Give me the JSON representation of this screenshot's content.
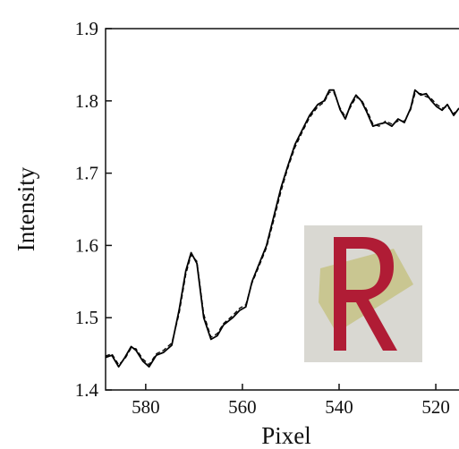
{
  "chart_data": {
    "type": "line",
    "x_label": "Pixel",
    "y_label": "Intensity",
    "x": [
      588.3,
      587.0,
      585.6,
      584.3,
      583.0,
      582.0,
      580.6,
      579.3,
      577.8,
      576.3,
      574.6,
      573.1,
      571.7,
      570.6,
      569.4,
      568.0,
      566.5,
      565.2,
      563.9,
      562.0,
      560.6,
      559.3,
      558.0,
      556.5,
      555.0,
      553.5,
      552.0,
      550.6,
      549.1,
      547.6,
      546.1,
      544.4,
      543.1,
      542.0,
      541.1,
      539.8,
      538.7,
      537.6,
      536.5,
      535.4,
      534.3,
      533.0,
      531.7,
      530.4,
      529.1,
      527.8,
      526.5,
      525.2,
      524.3,
      523.1,
      522.0,
      520.9,
      519.8,
      518.7,
      517.6,
      516.3,
      515.2
    ],
    "series": [
      {
        "color": "#000000",
        "dash": false,
        "values": [
          1.445,
          1.448,
          1.432,
          1.445,
          1.46,
          1.455,
          1.44,
          1.432,
          1.448,
          1.452,
          1.462,
          1.51,
          1.565,
          1.59,
          1.575,
          1.5,
          1.47,
          1.475,
          1.49,
          1.5,
          1.51,
          1.515,
          1.55,
          1.575,
          1.6,
          1.64,
          1.68,
          1.71,
          1.74,
          1.76,
          1.78,
          1.795,
          1.8,
          1.815,
          1.815,
          1.788,
          1.775,
          1.795,
          1.808,
          1.8,
          1.785,
          1.765,
          1.768,
          1.77,
          1.765,
          1.775,
          1.77,
          1.79,
          1.815,
          1.808,
          1.81,
          1.8,
          1.792,
          1.787,
          1.795,
          1.78,
          1.79
        ]
      },
      {
        "color": "#000000",
        "dash": true,
        "values": [
          1.447,
          1.45,
          1.435,
          1.443,
          1.458,
          1.457,
          1.443,
          1.435,
          1.45,
          1.455,
          1.465,
          1.505,
          1.56,
          1.587,
          1.578,
          1.505,
          1.473,
          1.478,
          1.492,
          1.503,
          1.513,
          1.518,
          1.548,
          1.572,
          1.597,
          1.635,
          1.675,
          1.707,
          1.736,
          1.757,
          1.777,
          1.792,
          1.798,
          1.812,
          1.812,
          1.79,
          1.778,
          1.792,
          1.805,
          1.802,
          1.788,
          1.768,
          1.765,
          1.772,
          1.768,
          1.772,
          1.772,
          1.788,
          1.81,
          1.81,
          1.806,
          1.803,
          1.795,
          1.79,
          1.792,
          1.783,
          1.787
        ]
      }
    ],
    "xlim": [
      588.3,
      515.2
    ],
    "xticks": [
      580,
      560,
      540,
      520
    ],
    "ylim": [
      1.4,
      1.9
    ],
    "yticks": [
      1.4,
      1.5,
      1.6,
      1.7,
      1.8,
      1.9
    ]
  }
}
